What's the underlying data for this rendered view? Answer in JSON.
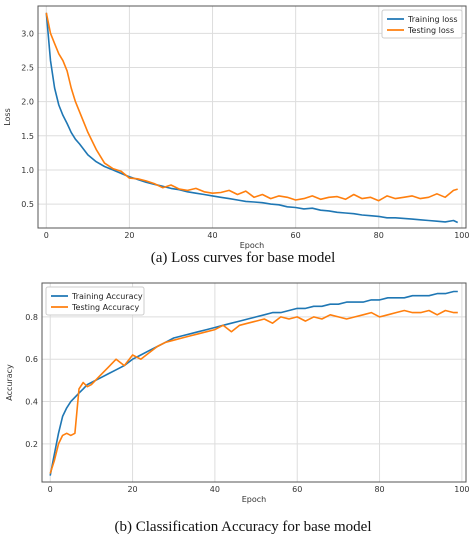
{
  "chart_data": [
    {
      "type": "line",
      "caption": "(a) Loss curves for base model",
      "xlabel": "Epoch",
      "ylabel": "Loss",
      "xlim": [
        -2,
        101
      ],
      "ylim": [
        0.15,
        3.4
      ],
      "xticks": [
        "0",
        "20",
        "40",
        "60",
        "80",
        "100"
      ],
      "yticks": [
        "0.5",
        "1.0",
        "1.5",
        "2.0",
        "2.5",
        "3.0"
      ],
      "grid": true,
      "legend_position": "top-right",
      "series": [
        {
          "name": "Training loss",
          "color": "#1f77b4",
          "x": [
            0,
            1,
            2,
            3,
            4,
            5,
            6,
            7,
            8,
            9,
            10,
            12,
            14,
            16,
            18,
            20,
            22,
            24,
            26,
            28,
            30,
            32,
            34,
            36,
            38,
            40,
            42,
            44,
            46,
            48,
            50,
            52,
            54,
            56,
            58,
            60,
            62,
            64,
            66,
            68,
            70,
            72,
            74,
            76,
            78,
            80,
            82,
            84,
            86,
            88,
            90,
            92,
            94,
            96,
            98,
            99
          ],
          "y": [
            3.3,
            2.6,
            2.2,
            1.95,
            1.8,
            1.68,
            1.55,
            1.45,
            1.38,
            1.3,
            1.22,
            1.12,
            1.05,
            1.0,
            0.95,
            0.9,
            0.86,
            0.82,
            0.79,
            0.76,
            0.73,
            0.71,
            0.68,
            0.66,
            0.64,
            0.62,
            0.6,
            0.58,
            0.56,
            0.54,
            0.53,
            0.52,
            0.5,
            0.49,
            0.46,
            0.45,
            0.43,
            0.44,
            0.41,
            0.4,
            0.38,
            0.37,
            0.36,
            0.34,
            0.33,
            0.32,
            0.3,
            0.3,
            0.29,
            0.28,
            0.27,
            0.26,
            0.25,
            0.24,
            0.26,
            0.23
          ]
        },
        {
          "name": "Testing loss",
          "color": "#ff7f0e",
          "x": [
            0,
            1,
            2,
            3,
            4,
            5,
            6,
            7,
            8,
            9,
            10,
            12,
            14,
            16,
            18,
            20,
            22,
            24,
            26,
            28,
            30,
            32,
            34,
            36,
            38,
            40,
            42,
            44,
            46,
            48,
            50,
            52,
            54,
            56,
            58,
            60,
            62,
            64,
            66,
            68,
            70,
            72,
            74,
            76,
            78,
            80,
            82,
            84,
            86,
            88,
            90,
            92,
            94,
            96,
            98,
            99
          ],
          "y": [
            3.3,
            3.0,
            2.85,
            2.7,
            2.6,
            2.45,
            2.2,
            2.0,
            1.85,
            1.7,
            1.55,
            1.3,
            1.1,
            1.02,
            0.98,
            0.88,
            0.87,
            0.84,
            0.8,
            0.74,
            0.78,
            0.72,
            0.7,
            0.73,
            0.68,
            0.66,
            0.67,
            0.7,
            0.64,
            0.69,
            0.6,
            0.64,
            0.58,
            0.62,
            0.6,
            0.56,
            0.58,
            0.62,
            0.57,
            0.6,
            0.61,
            0.57,
            0.64,
            0.58,
            0.6,
            0.55,
            0.62,
            0.58,
            0.6,
            0.62,
            0.58,
            0.6,
            0.65,
            0.6,
            0.7,
            0.72
          ]
        }
      ]
    },
    {
      "type": "line",
      "caption": "(b) Classification Accuracy for base model",
      "xlabel": "Epoch",
      "ylabel": "Accuracy",
      "xlim": [
        -2,
        101
      ],
      "ylim": [
        0.02,
        0.96
      ],
      "xticks": [
        "0",
        "20",
        "40",
        "60",
        "80",
        "100"
      ],
      "yticks": [
        "0.2",
        "0.4",
        "0.6",
        "0.8"
      ],
      "grid": true,
      "legend_position": "top-left",
      "series": [
        {
          "name": "Training Accuracy",
          "color": "#1f77b4",
          "x": [
            0,
            1,
            2,
            3,
            4,
            5,
            6,
            7,
            8,
            9,
            10,
            12,
            14,
            16,
            18,
            20,
            22,
            24,
            26,
            28,
            30,
            32,
            34,
            36,
            38,
            40,
            42,
            44,
            46,
            48,
            50,
            52,
            54,
            56,
            58,
            60,
            62,
            64,
            66,
            68,
            70,
            72,
            74,
            76,
            78,
            80,
            82,
            84,
            86,
            88,
            90,
            92,
            94,
            96,
            98,
            99
          ],
          "y": [
            0.05,
            0.15,
            0.25,
            0.33,
            0.37,
            0.4,
            0.42,
            0.44,
            0.46,
            0.48,
            0.49,
            0.51,
            0.53,
            0.55,
            0.57,
            0.6,
            0.62,
            0.64,
            0.66,
            0.68,
            0.7,
            0.71,
            0.72,
            0.73,
            0.74,
            0.75,
            0.76,
            0.77,
            0.78,
            0.79,
            0.8,
            0.81,
            0.82,
            0.82,
            0.83,
            0.84,
            0.84,
            0.85,
            0.85,
            0.86,
            0.86,
            0.87,
            0.87,
            0.87,
            0.88,
            0.88,
            0.89,
            0.89,
            0.89,
            0.9,
            0.9,
            0.9,
            0.91,
            0.91,
            0.92,
            0.92
          ]
        },
        {
          "name": "Testing Accuracy",
          "color": "#ff7f0e",
          "x": [
            0,
            1,
            2,
            3,
            4,
            5,
            6,
            7,
            8,
            9,
            10,
            12,
            14,
            16,
            18,
            20,
            22,
            24,
            26,
            28,
            30,
            32,
            34,
            36,
            38,
            40,
            42,
            44,
            46,
            48,
            50,
            52,
            54,
            56,
            58,
            60,
            62,
            64,
            66,
            68,
            70,
            72,
            74,
            76,
            78,
            80,
            82,
            84,
            86,
            88,
            90,
            92,
            94,
            96,
            98,
            99
          ],
          "y": [
            0.06,
            0.12,
            0.2,
            0.24,
            0.25,
            0.24,
            0.25,
            0.46,
            0.49,
            0.47,
            0.48,
            0.52,
            0.56,
            0.6,
            0.57,
            0.62,
            0.6,
            0.63,
            0.66,
            0.68,
            0.69,
            0.7,
            0.71,
            0.72,
            0.73,
            0.74,
            0.76,
            0.73,
            0.76,
            0.77,
            0.78,
            0.79,
            0.77,
            0.8,
            0.79,
            0.8,
            0.78,
            0.8,
            0.79,
            0.81,
            0.8,
            0.79,
            0.8,
            0.81,
            0.82,
            0.8,
            0.81,
            0.82,
            0.83,
            0.82,
            0.82,
            0.83,
            0.81,
            0.83,
            0.82,
            0.82
          ]
        }
      ]
    }
  ]
}
